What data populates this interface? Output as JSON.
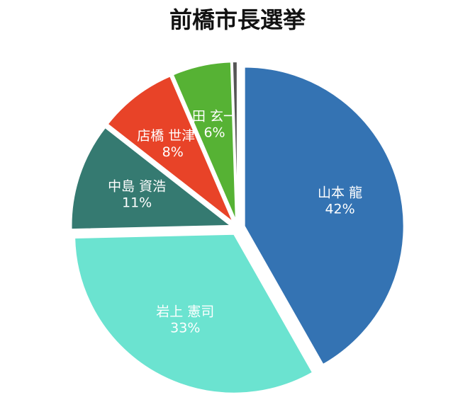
{
  "chart_data": {
    "type": "pie",
    "title": "前橋市長選挙",
    "categories": [
      "山本 龍",
      "岩上 憲司",
      "中島 資浩",
      "店橋 世津子",
      "田 玄一",
      null
    ],
    "values": [
      42,
      33,
      11,
      8,
      6,
      0.5
    ],
    "value_labels": [
      "42%",
      "33%",
      "11%",
      "8%",
      "6%",
      null
    ],
    "colors": [
      "#3473b3",
      "#6be3d0",
      "#357a71",
      "#e84328",
      "#56b234",
      "#555555"
    ]
  }
}
